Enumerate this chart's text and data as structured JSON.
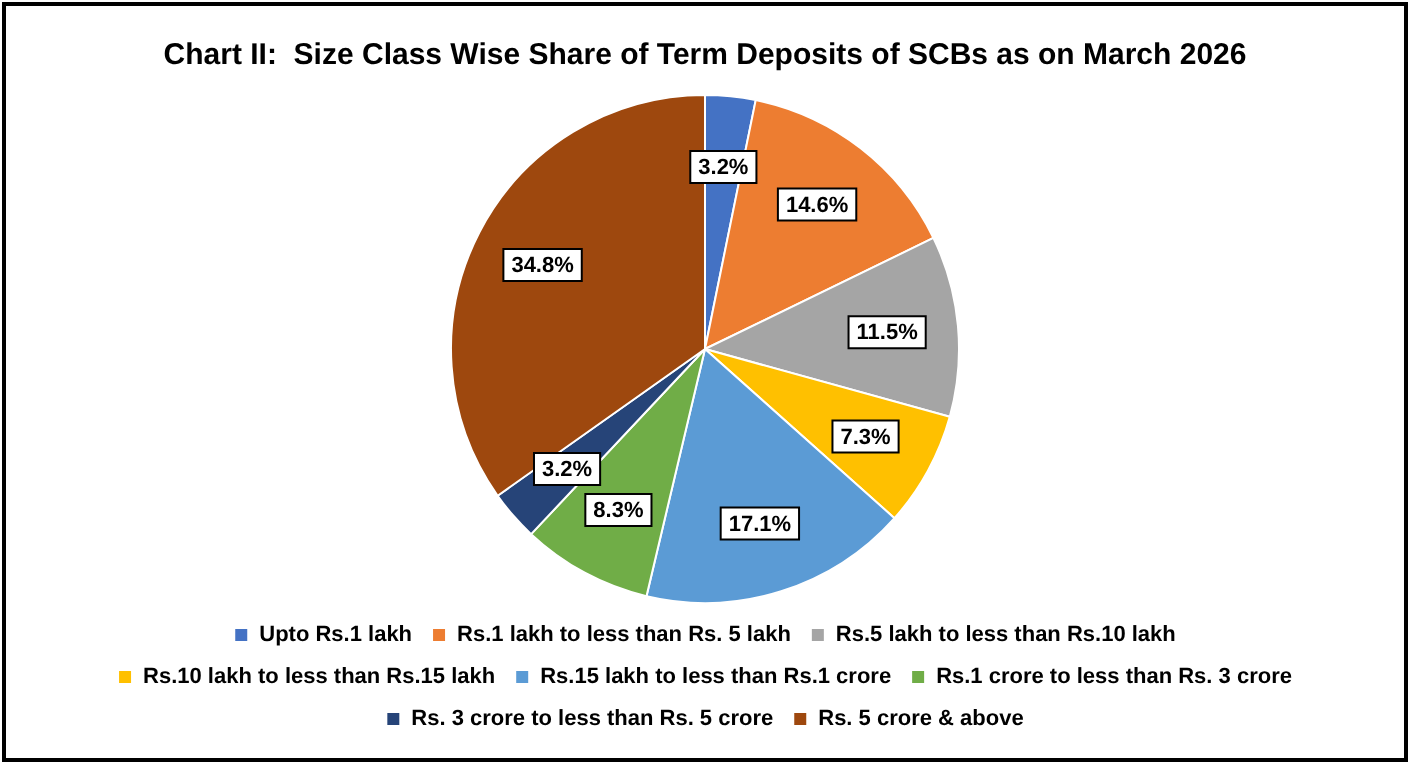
{
  "chart_data": {
    "type": "pie",
    "title": "Chart II:  Size Class Wise Share of Term Deposits of SCBs as on March 2026",
    "categories": [
      "Upto Rs.1 lakh",
      "Rs.1 lakh to less than Rs. 5 lakh",
      "Rs.5 lakh to less than Rs.10 lakh",
      "Rs.10 lakh to less than Rs.15 lakh",
      "Rs.15 lakh to less than Rs.1 crore",
      "Rs.1 crore to less than Rs. 3 crore",
      "Rs. 3 crore to less than Rs. 5 crore",
      "Rs. 5 crore & above"
    ],
    "values": [
      3.2,
      14.6,
      11.5,
      7.3,
      17.1,
      8.3,
      3.2,
      34.8
    ],
    "colors": [
      "#4472c4",
      "#ed7d31",
      "#a5a5a5",
      "#ffc000",
      "#5b9bd5",
      "#70ad47",
      "#264478",
      "#9e480e"
    ],
    "value_labels": [
      "3.2%",
      "14.6%",
      "11.5%",
      "7.3%",
      "17.1%",
      "8.3%",
      "3.2%",
      "34.8%"
    ],
    "legend": "bottom"
  }
}
